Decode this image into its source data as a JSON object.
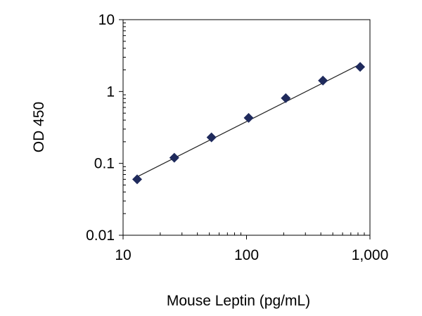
{
  "chart_data": {
    "type": "scatter",
    "title": "",
    "xlabel": "Mouse Leptin (pg/mL)",
    "ylabel": "OD 450",
    "x_scale": "log",
    "y_scale": "log",
    "xlim": [
      10,
      1000
    ],
    "ylim": [
      0.01,
      10
    ],
    "x_ticks": [
      {
        "value": 10,
        "label": "10"
      },
      {
        "value": 100,
        "label": "100"
      },
      {
        "value": 1000,
        "label": "1,000"
      }
    ],
    "y_ticks": [
      {
        "value": 0.01,
        "label": "0.01"
      },
      {
        "value": 0.1,
        "label": "0.1"
      },
      {
        "value": 1,
        "label": "1"
      },
      {
        "value": 10,
        "label": "10"
      }
    ],
    "grid": false,
    "legend": "none",
    "marker": "diamond",
    "marker_color": "#1f2a5c",
    "line_color": "#222222",
    "series": [
      {
        "x": [
          13,
          26,
          52,
          104,
          208,
          416,
          833
        ],
        "y": [
          0.06,
          0.12,
          0.23,
          0.43,
          0.81,
          1.42,
          2.2
        ]
      }
    ],
    "fit_line": {
      "x": [
        13,
        833
      ],
      "y": [
        0.065,
        2.4
      ]
    }
  }
}
